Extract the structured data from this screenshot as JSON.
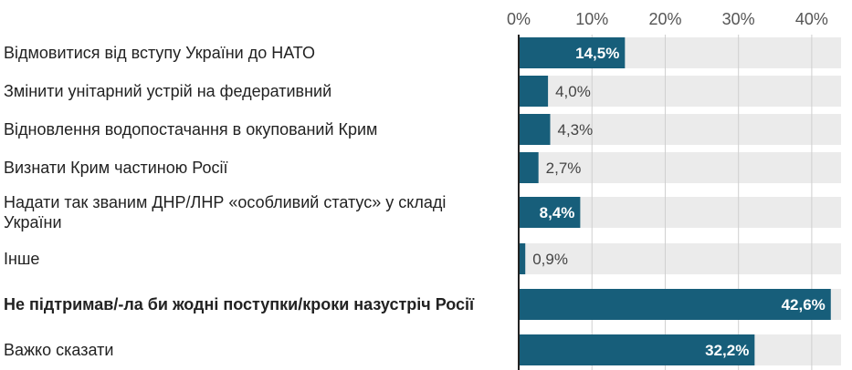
{
  "chart_data": {
    "type": "bar",
    "orientation": "horizontal",
    "title": "",
    "xlabel": "",
    "ylabel": "",
    "xlim": [
      0,
      44
    ],
    "ticks": [
      0,
      10,
      20,
      30,
      40
    ],
    "tick_labels": [
      "0%",
      "10%",
      "20%",
      "30%",
      "40%"
    ],
    "grid": true,
    "legend": "none",
    "colors": {
      "bar": "#175E7A",
      "track": "#EBEBEB",
      "grid": "#CFCFCF",
      "axis": "#222222",
      "label_inside": "#FFFFFF",
      "label_outside": "#444444"
    },
    "categories": [
      "Відмовитися від вступу України до НАТО",
      "Змінити унітарний устрій на федеративний",
      "Відновлення водопостачання в окупований Крим",
      "Визнати Крим частиною Росії",
      "Надати так званим ДНР/ЛНР «особливий статус» у складі України",
      "Інше",
      "Не підтримав/-ла би жодні поступки/кроки назустріч Росії",
      "Важко сказати"
    ],
    "values": [
      14.5,
      4.0,
      4.3,
      2.7,
      8.4,
      0.9,
      42.6,
      32.2
    ],
    "value_labels": [
      "14,5%",
      "4,0%",
      "4,3%",
      "2,7%",
      "8,4%",
      "0,9%",
      "42,6%",
      "32,2%"
    ],
    "highlighted_categories": [
      "Не підтримав/-ла би жодні поступки/кроки назустріч Росії"
    ]
  }
}
